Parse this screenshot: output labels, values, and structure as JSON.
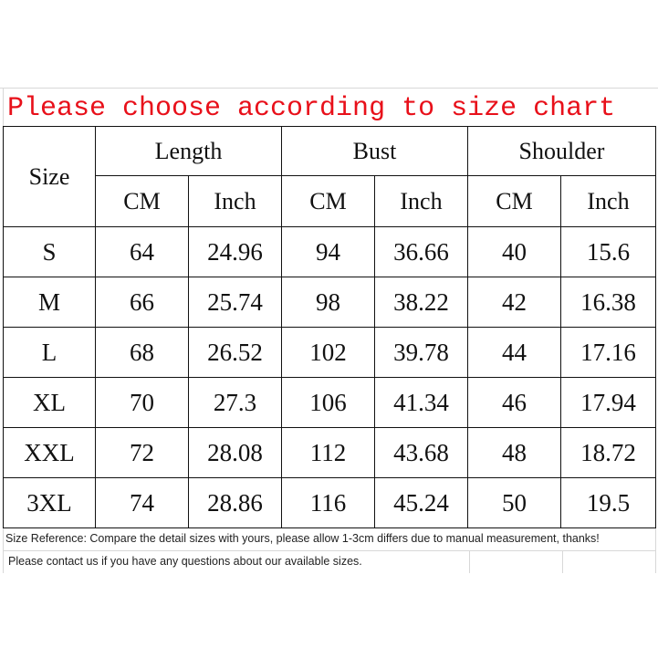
{
  "title": "Please choose according to size chart",
  "table": {
    "size_header": "Size",
    "groups": [
      "Length",
      "Bust",
      "Shoulder"
    ],
    "units": [
      "CM",
      "Inch",
      "CM",
      "Inch",
      "CM",
      "Inch"
    ],
    "rows": [
      [
        "S",
        "64",
        "24.96",
        "94",
        "36.66",
        "40",
        "15.6"
      ],
      [
        "M",
        "66",
        "25.74",
        "98",
        "38.22",
        "42",
        "16.38"
      ],
      [
        "L",
        "68",
        "26.52",
        "102",
        "39.78",
        "44",
        "17.16"
      ],
      [
        "XL",
        "70",
        "27.3",
        "106",
        "41.34",
        "46",
        "17.94"
      ],
      [
        "XXL",
        "72",
        "28.08",
        "112",
        "43.68",
        "48",
        "18.72"
      ],
      [
        "3XL",
        "74",
        "28.86",
        "116",
        "45.24",
        "50",
        "19.5"
      ]
    ]
  },
  "footer": {
    "reference": "Size Reference: Compare the detail sizes with yours, please allow 1-3cm differs due to manual measurement, thanks!",
    "contact": "Please contact us if you have any questions about our available sizes."
  },
  "colors": {
    "title": "#e8101a",
    "border": "#111111"
  }
}
